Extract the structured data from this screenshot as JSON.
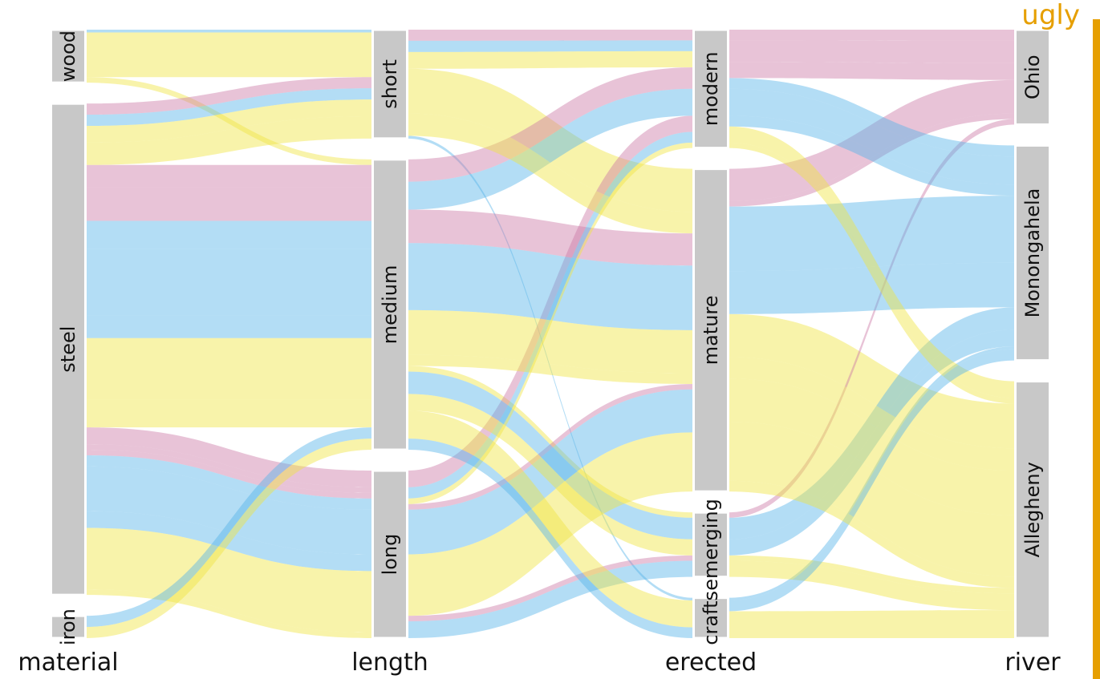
{
  "chart_data": {
    "type": "alluvial",
    "tag": "ugly",
    "axes": [
      "material",
      "length",
      "erected",
      "river"
    ],
    "strata": {
      "material": [
        "wood",
        "steel",
        "iron"
      ],
      "length": [
        "short",
        "medium",
        "long"
      ],
      "erected": [
        "modern",
        "mature",
        "emerging",
        "crafts"
      ],
      "river": [
        "Ohio",
        "Monongahela",
        "Allegheny"
      ]
    },
    "flow_color_variable": "river",
    "colors": {
      "Ohio": "#cc79a7",
      "Monongahela": "#56b4e9",
      "Allegheny": "#f0e442",
      "stratum": "#c8c8c8",
      "tag": "#e69f00",
      "accent_bar": "#e69f00"
    },
    "flows": [
      {
        "path": [
          "wood",
          "short",
          "crafts",
          "Monongahela"
        ],
        "count": 0.5
      },
      {
        "path": [
          "wood",
          "medium",
          "emerging",
          "Allegheny"
        ],
        "count": 1
      },
      {
        "path": [
          "wood",
          "short",
          "mature",
          "Allegheny"
        ],
        "count": 8
      },
      {
        "path": [
          "steel",
          "short",
          "modern",
          "Ohio"
        ],
        "count": 2
      },
      {
        "path": [
          "steel",
          "medium",
          "modern",
          "Ohio"
        ],
        "count": 4
      },
      {
        "path": [
          "steel",
          "medium",
          "mature",
          "Ohio"
        ],
        "count": 6
      },
      {
        "path": [
          "steel",
          "long",
          "modern",
          "Ohio"
        ],
        "count": 3
      },
      {
        "path": [
          "steel",
          "long",
          "mature",
          "Ohio"
        ],
        "count": 1
      },
      {
        "path": [
          "steel",
          "long",
          "emerging",
          "Ohio"
        ],
        "count": 1
      },
      {
        "path": [
          "steel",
          "short",
          "modern",
          "Monongahela"
        ],
        "count": 2
      },
      {
        "path": [
          "steel",
          "medium",
          "modern",
          "Monongahela"
        ],
        "count": 5
      },
      {
        "path": [
          "steel",
          "medium",
          "mature",
          "Monongahela"
        ],
        "count": 12
      },
      {
        "path": [
          "steel",
          "medium",
          "emerging",
          "Monongahela"
        ],
        "count": 4
      },
      {
        "path": [
          "steel",
          "long",
          "modern",
          "Monongahela"
        ],
        "count": 2
      },
      {
        "path": [
          "steel",
          "long",
          "mature",
          "Monongahela"
        ],
        "count": 8
      },
      {
        "path": [
          "steel",
          "long",
          "emerging",
          "Monongahela"
        ],
        "count": 3
      },
      {
        "path": [
          "steel",
          "short",
          "modern",
          "Allegheny"
        ],
        "count": 3
      },
      {
        "path": [
          "steel",
          "short",
          "mature",
          "Allegheny"
        ],
        "count": 4
      },
      {
        "path": [
          "steel",
          "medium",
          "mature",
          "Allegheny"
        ],
        "count": 8
      },
      {
        "path": [
          "steel",
          "medium",
          "emerging",
          "Allegheny"
        ],
        "count": 3
      },
      {
        "path": [
          "steel",
          "medium",
          "crafts",
          "Allegheny"
        ],
        "count": 5
      },
      {
        "path": [
          "steel",
          "long",
          "mature",
          "Allegheny"
        ],
        "count": 11
      },
      {
        "path": [
          "steel",
          "long",
          "modern",
          "Allegheny"
        ],
        "count": 1
      },
      {
        "path": [
          "iron",
          "medium",
          "crafts",
          "Monongahela"
        ],
        "count": 2
      },
      {
        "path": [
          "iron",
          "medium",
          "mature",
          "Allegheny"
        ],
        "count": 2
      }
    ]
  }
}
